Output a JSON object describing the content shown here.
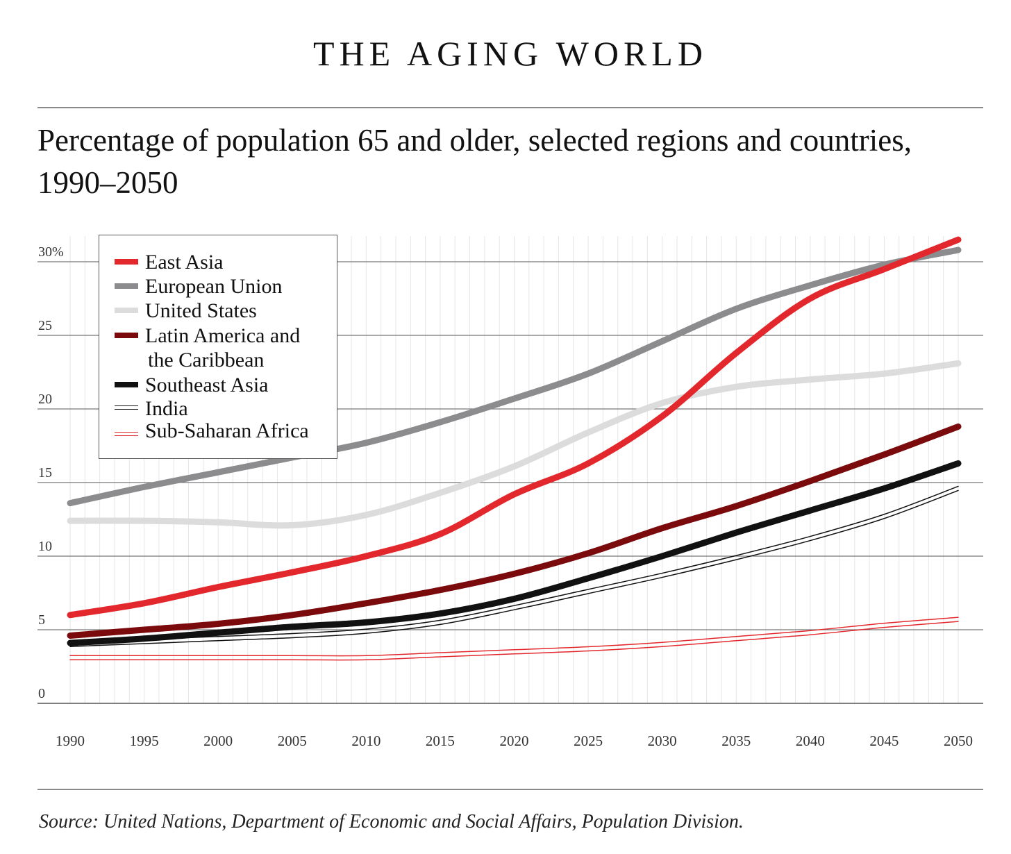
{
  "header": {
    "title": "THE AGING WORLD",
    "subtitle_line1": "Percentage of population 65 and older, selected regions and countries,",
    "subtitle_line2": "1990–2050"
  },
  "footer": {
    "source": "Source: United Nations, Department of Economic and Social Affairs, Population Division."
  },
  "legend": {
    "items": [
      {
        "label": "East Asia"
      },
      {
        "label": "European Union"
      },
      {
        "label": "United States"
      },
      {
        "label": "Latin America and",
        "label2": "the Caribbean"
      },
      {
        "label": "Southeast Asia"
      },
      {
        "label": "India"
      },
      {
        "label": "Sub-Saharan Africa"
      }
    ]
  },
  "chart_data": {
    "type": "line",
    "title": "Percentage of population 65 and older, selected regions and countries, 1990–2050",
    "xlabel": "",
    "ylabel": "",
    "xlim": [
      1990,
      2050
    ],
    "ylim": [
      0,
      30
    ],
    "x_ticks": [
      "1990",
      "1995",
      "2000",
      "2005",
      "2010",
      "2015",
      "2020",
      "2025",
      "2030",
      "2035",
      "2040",
      "2045",
      "2050"
    ],
    "y_ticks": [
      {
        "value": 0,
        "label": "0"
      },
      {
        "value": 5,
        "label": "5"
      },
      {
        "value": 10,
        "label": "10"
      },
      {
        "value": 15,
        "label": "15"
      },
      {
        "value": 20,
        "label": "20"
      },
      {
        "value": 25,
        "label": "25"
      },
      {
        "value": 30,
        "label": "30%"
      }
    ],
    "grid": {
      "horizontal": true,
      "vertical": true
    },
    "legend_position": "top-left",
    "x": [
      1990,
      1995,
      2000,
      2005,
      2010,
      2015,
      2020,
      2025,
      2030,
      2035,
      2040,
      2045,
      2050
    ],
    "series": [
      {
        "name": "East Asia",
        "color": "#e3282d",
        "style": "thick",
        "values": [
          6.0,
          6.8,
          7.9,
          8.9,
          10.0,
          11.5,
          14.2,
          16.3,
          19.5,
          23.8,
          27.5,
          29.5,
          31.5
        ]
      },
      {
        "name": "European Union",
        "color": "#8c8c8f",
        "style": "thick",
        "values": [
          13.6,
          14.7,
          15.7,
          16.7,
          17.7,
          19.1,
          20.7,
          22.4,
          24.6,
          26.8,
          28.4,
          29.8,
          30.8
        ]
      },
      {
        "name": "United States",
        "color": "#dcdcdc",
        "style": "thick",
        "values": [
          12.4,
          12.4,
          12.3,
          12.1,
          12.8,
          14.3,
          16.1,
          18.4,
          20.4,
          21.5,
          22.0,
          22.4,
          23.1
        ]
      },
      {
        "name": "Latin America and the Caribbean",
        "color": "#7a0a0c",
        "style": "thick",
        "values": [
          4.6,
          5.0,
          5.4,
          6.0,
          6.8,
          7.7,
          8.8,
          10.2,
          11.9,
          13.4,
          15.1,
          16.9,
          18.8
        ]
      },
      {
        "name": "Southeast Asia",
        "color": "#111111",
        "style": "thick",
        "values": [
          4.1,
          4.4,
          4.8,
          5.2,
          5.5,
          6.1,
          7.1,
          8.5,
          10.0,
          11.6,
          13.1,
          14.6,
          16.3
        ]
      },
      {
        "name": "India",
        "color": "#111111",
        "style": "double",
        "values": [
          4.0,
          4.2,
          4.4,
          4.6,
          4.9,
          5.5,
          6.5,
          7.6,
          8.7,
          9.9,
          11.2,
          12.7,
          14.6
        ]
      },
      {
        "name": "Sub-Saharan Africa",
        "color": "#e3282d",
        "style": "double",
        "values": [
          3.1,
          3.1,
          3.1,
          3.1,
          3.1,
          3.3,
          3.5,
          3.7,
          4.0,
          4.4,
          4.8,
          5.3,
          5.7
        ]
      }
    ]
  }
}
